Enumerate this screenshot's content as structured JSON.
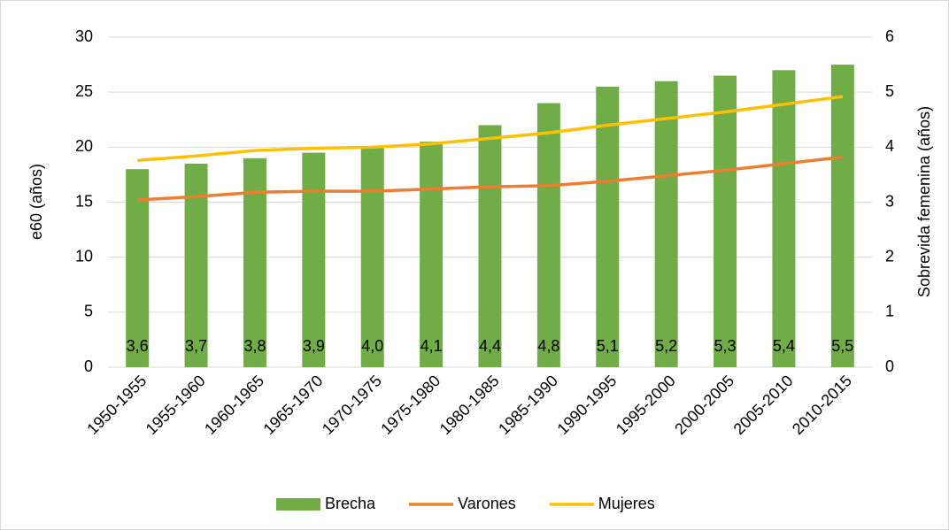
{
  "chart_data": {
    "type": "bar_line",
    "categories": [
      "1950-1955",
      "1955-1960",
      "1960-1965",
      "1965-1970",
      "1970-1975",
      "1975-1980",
      "1980-1985",
      "1985-1990",
      "1990-1995",
      "1995-2000",
      "2000-2005",
      "2005-2010",
      "2010-2015"
    ],
    "series": [
      {
        "name": "Brecha",
        "type": "bar",
        "axis": "y2",
        "color": "#70ad47",
        "values": [
          3.6,
          3.7,
          3.8,
          3.9,
          4.0,
          4.1,
          4.4,
          4.8,
          5.1,
          5.2,
          5.3,
          5.4,
          5.5
        ],
        "value_labels": [
          "3,6",
          "3,7",
          "3,8",
          "3,9",
          "4,0",
          "4,1",
          "4,4",
          "4,8",
          "5,1",
          "5,2",
          "5,3",
          "5,4",
          "5,5"
        ]
      },
      {
        "name": "Varones",
        "type": "line",
        "axis": "y",
        "color": "#ed7d31",
        "values": [
          15.2,
          15.5,
          15.9,
          16.0,
          16.0,
          16.2,
          16.4,
          16.5,
          16.9,
          17.4,
          17.9,
          18.5,
          19.1
        ]
      },
      {
        "name": "Mujeres",
        "type": "line",
        "axis": "y",
        "color": "#ffc000",
        "values": [
          18.8,
          19.2,
          19.7,
          19.9,
          20.0,
          20.3,
          20.8,
          21.3,
          22.0,
          22.6,
          23.2,
          23.9,
          24.6
        ]
      }
    ],
    "ylabel": "e60 (años)",
    "y2label": "Sobrevida femenina (años)",
    "ylim": [
      0,
      30
    ],
    "yticks": [
      0,
      5,
      10,
      15,
      20,
      25,
      30
    ],
    "y2lim": [
      0,
      6
    ],
    "y2ticks": [
      0,
      1,
      2,
      3,
      4,
      5,
      6
    ],
    "grid": true,
    "legend": "bottom"
  }
}
